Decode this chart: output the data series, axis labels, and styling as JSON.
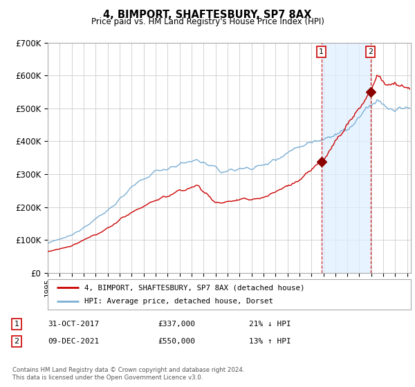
{
  "title": "4, BIMPORT, SHAFTESBURY, SP7 8AX",
  "subtitle": "Price paid vs. HM Land Registry's House Price Index (HPI)",
  "ylim": [
    0,
    700000
  ],
  "yticks": [
    0,
    100000,
    200000,
    300000,
    400000,
    500000,
    600000,
    700000
  ],
  "ytick_labels": [
    "£0",
    "£100K",
    "£200K",
    "£300K",
    "£400K",
    "£500K",
    "£600K",
    "£700K"
  ],
  "background_color": "#ffffff",
  "grid_color": "#cccccc",
  "sale1_x": 2017.83,
  "sale1_y": 337000,
  "sale2_x": 2021.94,
  "sale2_y": 550000,
  "legend_label1": "4, BIMPORT, SHAFTESBURY, SP7 8AX (detached house)",
  "legend_label2": "HPI: Average price, detached house, Dorset",
  "anno1_date": "31-OCT-2017",
  "anno1_price": "£337,000",
  "anno1_hpi": "21% ↓ HPI",
  "anno2_date": "09-DEC-2021",
  "anno2_price": "£550,000",
  "anno2_hpi": "13% ↑ HPI",
  "footer1": "Contains HM Land Registry data © Crown copyright and database right 2024.",
  "footer2": "This data is licensed under the Open Government Licence v3.0.",
  "hpi_color": "#7bafd4",
  "hpi_fill_color": "#ddeeff",
  "price_color": "#cc0000",
  "vline_color": "#cc0000",
  "marker_color": "#8b0000",
  "xlim_left": 1995,
  "xlim_right": 2025.3
}
